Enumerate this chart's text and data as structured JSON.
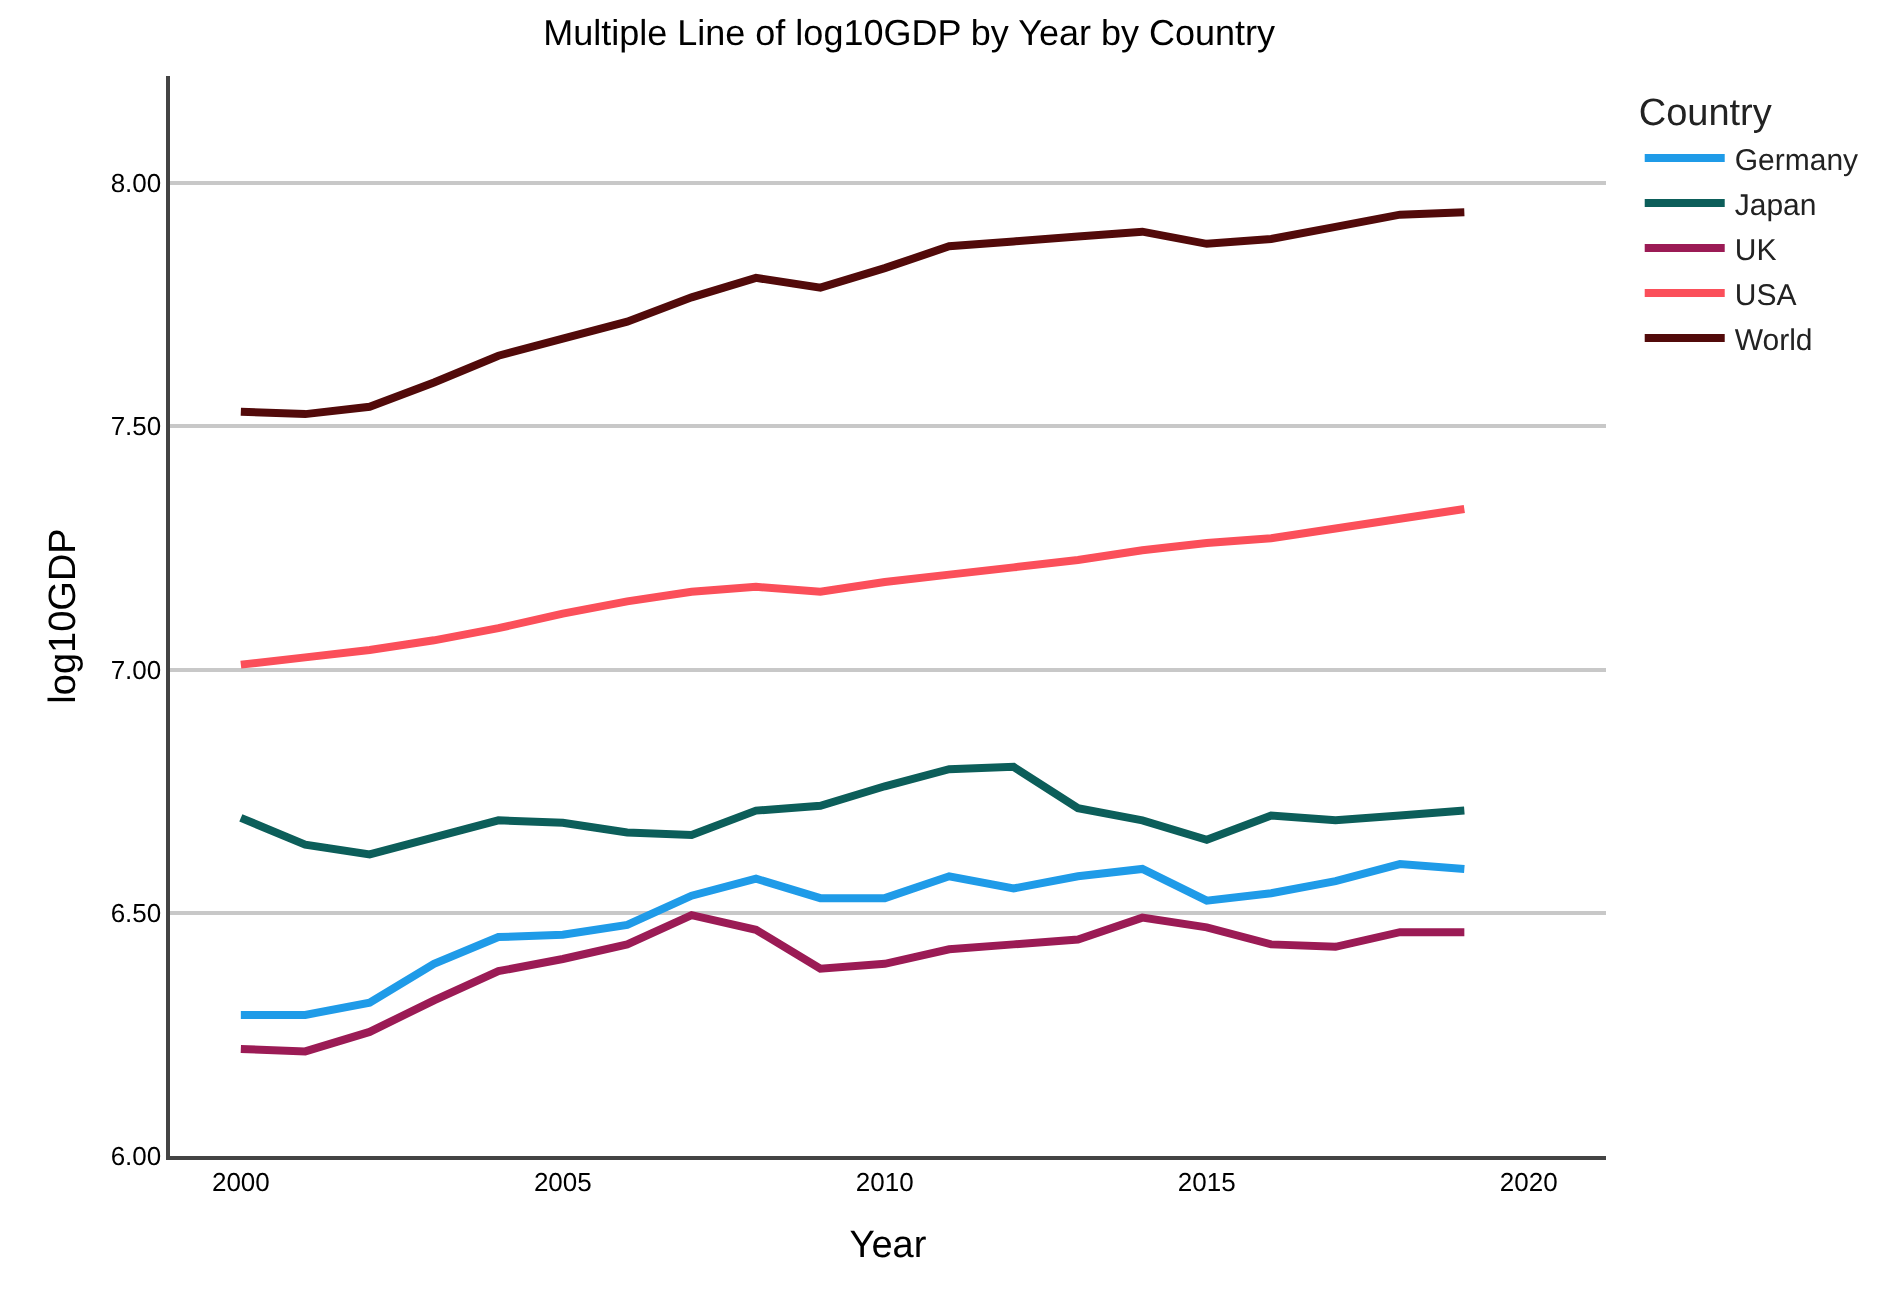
{
  "chart_data": {
    "type": "line",
    "title": "Multiple Line of log10GDP by Year by Country",
    "xlabel": "Year",
    "ylabel": "log10GDP",
    "legend_title": "Country",
    "x": [
      2000,
      2001,
      2002,
      2003,
      2004,
      2005,
      2006,
      2007,
      2008,
      2009,
      2010,
      2011,
      2012,
      2013,
      2014,
      2015,
      2016,
      2017,
      2018,
      2019
    ],
    "series": [
      {
        "name": "Germany",
        "color": "#1f9be8",
        "values": [
          6.29,
          6.29,
          6.315,
          6.395,
          6.45,
          6.455,
          6.475,
          6.535,
          6.57,
          6.53,
          6.53,
          6.575,
          6.55,
          6.575,
          6.59,
          6.525,
          6.54,
          6.565,
          6.6,
          6.59
        ]
      },
      {
        "name": "Japan",
        "color": "#0c5e5a",
        "values": [
          6.695,
          6.64,
          6.62,
          6.655,
          6.69,
          6.685,
          6.665,
          6.66,
          6.71,
          6.72,
          6.76,
          6.795,
          6.8,
          6.715,
          6.69,
          6.65,
          6.7,
          6.69,
          6.7,
          6.71
        ]
      },
      {
        "name": "UK",
        "color": "#9b1b55",
        "values": [
          6.22,
          6.215,
          6.255,
          6.32,
          6.38,
          6.405,
          6.435,
          6.495,
          6.465,
          6.385,
          6.395,
          6.425,
          6.435,
          6.445,
          6.49,
          6.47,
          6.435,
          6.43,
          6.46,
          6.46
        ]
      },
      {
        "name": "USA",
        "color": "#fb4f5a",
        "values": [
          7.01,
          7.025,
          7.04,
          7.06,
          7.085,
          7.115,
          7.14,
          7.16,
          7.17,
          7.16,
          7.18,
          7.195,
          7.21,
          7.225,
          7.245,
          7.26,
          7.27,
          7.29,
          7.31,
          7.33
        ]
      },
      {
        "name": "World",
        "color": "#520a0a",
        "values": [
          7.53,
          7.525,
          7.54,
          7.59,
          7.645,
          7.68,
          7.715,
          7.765,
          7.805,
          7.785,
          7.825,
          7.87,
          7.88,
          7.89,
          7.9,
          7.875,
          7.885,
          7.91,
          7.935,
          7.94
        ]
      }
    ],
    "xlim": [
      1998.9,
      2021.2
    ],
    "xticks": [
      2000,
      2005,
      2010,
      2015,
      2020
    ],
    "ylim": [
      6.0,
      8.22
    ],
    "yticks": [
      {
        "value": 6.0,
        "label": "6.00"
      },
      {
        "value": 6.5,
        "label": "6.50"
      },
      {
        "value": 7.0,
        "label": "7.00"
      },
      {
        "value": 7.5,
        "label": "7.50"
      },
      {
        "value": 8.0,
        "label": "8.00"
      }
    ],
    "grid": "y",
    "legend": "top right",
    "marker": "none",
    "line_style": "solid"
  }
}
